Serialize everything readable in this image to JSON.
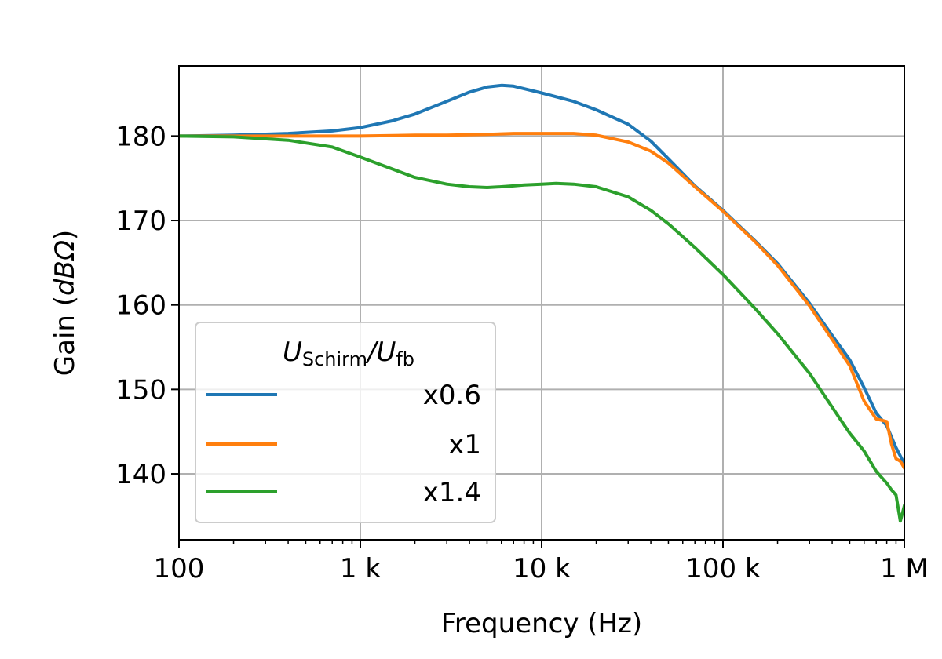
{
  "chart_data": {
    "type": "line",
    "xlabel": "Frequency (Hz)",
    "ylabel_text": "Gain (",
    "ylabel_unit": "dBΩ",
    "ylabel_close": ")",
    "xscale": "log",
    "xlim": [
      100,
      1000000
    ],
    "ylim": [
      132.2,
      188.3
    ],
    "grid": true,
    "x_ticks": [
      {
        "value": 100,
        "label": "100"
      },
      {
        "value": 1000,
        "label": "1 k"
      },
      {
        "value": 10000,
        "label": "10 k"
      },
      {
        "value": 100000,
        "label": "100 k"
      },
      {
        "value": 1000000,
        "label": "1 M"
      }
    ],
    "y_ticks": [
      {
        "value": 140,
        "label": "140"
      },
      {
        "value": 150,
        "label": "150"
      },
      {
        "value": 160,
        "label": "160"
      },
      {
        "value": 170,
        "label": "170"
      },
      {
        "value": 180,
        "label": "180"
      }
    ],
    "legend": {
      "placement": "lower-left",
      "title_main": "U",
      "title_sub1": "Schirm",
      "title_slash": "/U",
      "title_sub2": "fb"
    },
    "series": [
      {
        "name": "x0.6",
        "color": "#1f77b4",
        "x": [
          100,
          200,
          400,
          700,
          1000,
          1500,
          2000,
          3000,
          4000,
          5000,
          6000,
          7000,
          8000,
          10000,
          15000,
          20000,
          30000,
          40000,
          50000,
          70000,
          100000,
          150000,
          200000,
          300000,
          400000,
          500000,
          600000,
          700000,
          800000,
          900000,
          1000000
        ],
        "y": [
          180,
          180.1,
          180.3,
          180.6,
          181,
          181.8,
          182.6,
          184.1,
          185.2,
          185.8,
          186,
          185.9,
          185.6,
          185.1,
          184.1,
          183.1,
          181.4,
          179.4,
          177.3,
          174.1,
          171.2,
          167.6,
          164.9,
          160.2,
          156.4,
          153.5,
          150.2,
          147.2,
          145.7,
          143.1,
          141.2
        ]
      },
      {
        "name": "x1",
        "color": "#ff7f0e",
        "x": [
          100,
          200,
          400,
          700,
          1000,
          2000,
          3000,
          5000,
          7000,
          10000,
          15000,
          20000,
          30000,
          40000,
          50000,
          70000,
          100000,
          150000,
          200000,
          300000,
          400000,
          500000,
          600000,
          700000,
          800000,
          850000,
          900000,
          950000,
          1000000
        ],
        "y": [
          180,
          180,
          180,
          180,
          180,
          180.1,
          180.1,
          180.2,
          180.3,
          180.3,
          180.3,
          180.1,
          179.3,
          178.2,
          176.8,
          174,
          171.1,
          167.5,
          164.7,
          159.9,
          155.9,
          152.8,
          148.6,
          146.5,
          146.2,
          143.5,
          141.8,
          141.5,
          140.7
        ]
      },
      {
        "name": "x1.4",
        "color": "#2ca02c",
        "x": [
          100,
          200,
          400,
          700,
          1000,
          1500,
          2000,
          3000,
          4000,
          5000,
          6000,
          7000,
          8000,
          10000,
          12000,
          15000,
          20000,
          30000,
          40000,
          50000,
          70000,
          100000,
          150000,
          200000,
          300000,
          400000,
          500000,
          600000,
          700000,
          800000,
          850000,
          900000,
          950000,
          1000000
        ],
        "y": [
          180,
          179.9,
          179.5,
          178.7,
          177.5,
          176.1,
          175.1,
          174.3,
          174,
          173.9,
          174,
          174.1,
          174.2,
          174.3,
          174.4,
          174.3,
          174,
          172.8,
          171.2,
          169.6,
          166.8,
          163.6,
          159.6,
          156.6,
          151.9,
          147.9,
          144.8,
          142.7,
          140.3,
          138.9,
          138.1,
          137.5,
          134.4,
          136.2
        ]
      }
    ]
  }
}
